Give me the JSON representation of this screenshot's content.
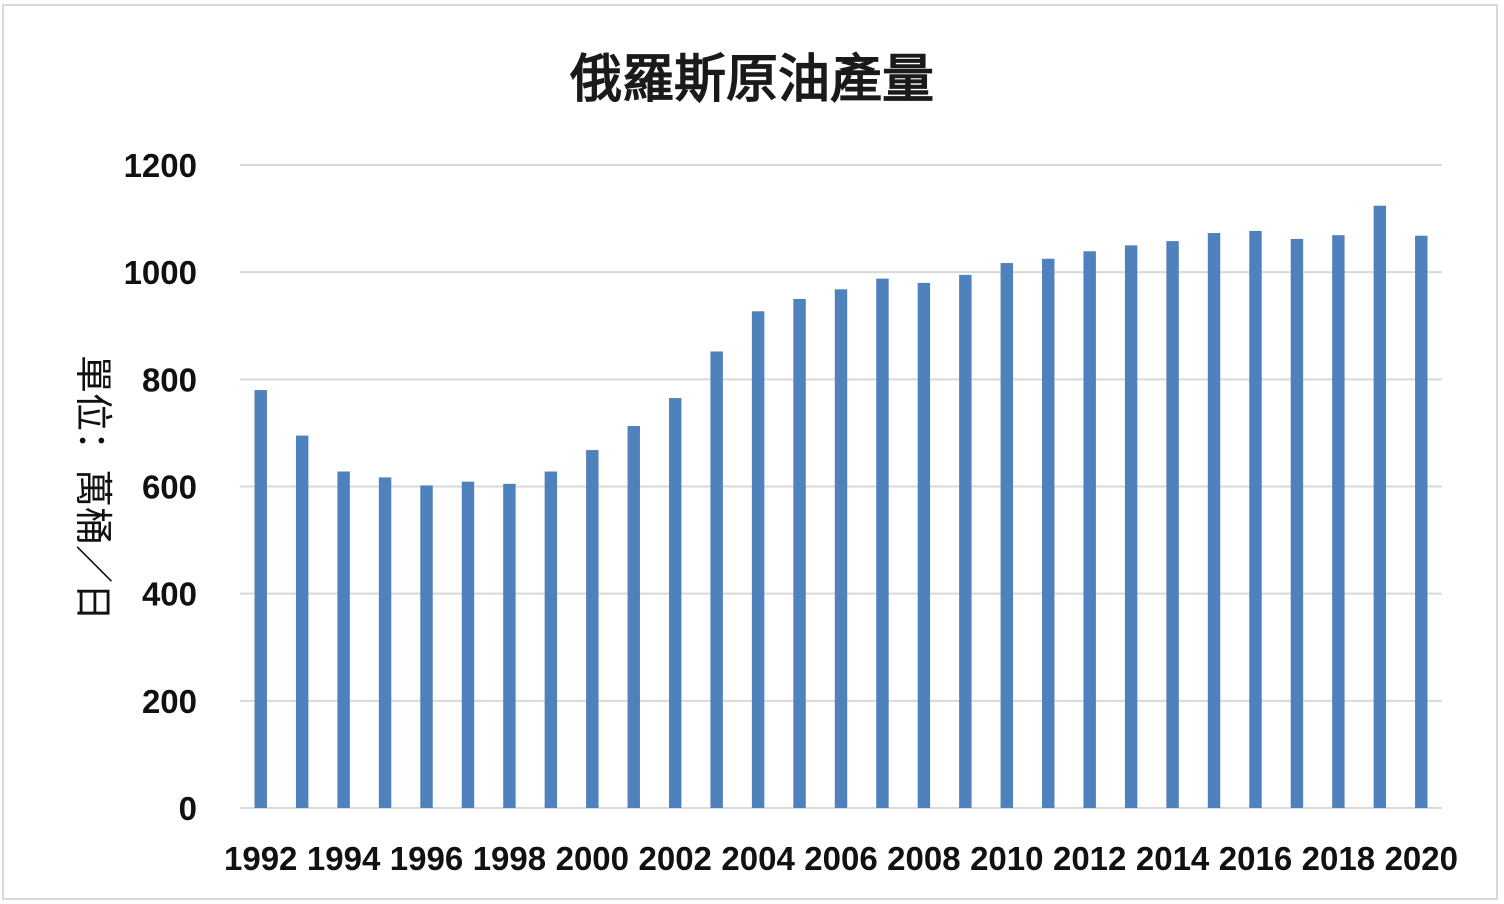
{
  "chart_data": {
    "type": "bar",
    "title": "俄羅斯原油產量",
    "xlabel": "",
    "ylabel": "單位：萬桶／日",
    "categories": [
      "1992",
      "1993",
      "1994",
      "1995",
      "1996",
      "1997",
      "1998",
      "1999",
      "2000",
      "2001",
      "2002",
      "2003",
      "2004",
      "2005",
      "2006",
      "2007",
      "2008",
      "2009",
      "2010",
      "2011",
      "2012",
      "2013",
      "2014",
      "2015",
      "2016",
      "2017",
      "2018",
      "2019",
      "2020"
    ],
    "x_tick_labels": [
      "1992",
      "1994",
      "1996",
      "1998",
      "2000",
      "2002",
      "2004",
      "2006",
      "2008",
      "2010",
      "2012",
      "2014",
      "2016",
      "2018",
      "2020"
    ],
    "values": [
      780,
      695,
      628,
      617,
      602,
      609,
      605,
      628,
      668,
      713,
      765,
      852,
      927,
      950,
      968,
      988,
      980,
      995,
      1017,
      1025,
      1039,
      1050,
      1058,
      1073,
      1077,
      1062,
      1069,
      1124,
      1068
    ],
    "ylim": [
      0,
      1200
    ],
    "y_ticks": [
      0,
      200,
      400,
      600,
      800,
      1000,
      1200
    ],
    "grid": true,
    "legend": "none",
    "bar_color": "#4f81bd",
    "grid_color": "#d9d9d9"
  }
}
